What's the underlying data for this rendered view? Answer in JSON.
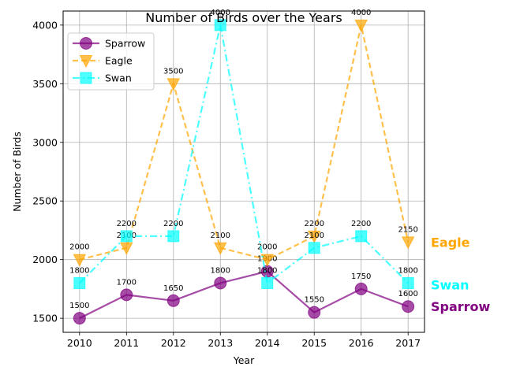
{
  "chart_data": {
    "type": "line",
    "title": "Number of Birds over the Years",
    "xlabel": "Year",
    "ylabel": "Number of Birds",
    "x": [
      2010,
      2011,
      2012,
      2013,
      2014,
      2015,
      2016,
      2017
    ],
    "xticks": [
      "2010",
      "2011",
      "2012",
      "2013",
      "2014",
      "2015",
      "2016",
      "2017"
    ],
    "yticks": [
      "1500",
      "2000",
      "2500",
      "3000",
      "3500",
      "4000"
    ],
    "ylim": [
      1380,
      4120
    ],
    "grid": true,
    "legend_position": "top-left",
    "series": [
      {
        "name": "Sparrow",
        "values": [
          1500,
          1700,
          1650,
          1800,
          1900,
          1550,
          1750,
          1600
        ],
        "labels": [
          "1500",
          "1700",
          "1650",
          "1800",
          "1900",
          "1550",
          "1750",
          "1600"
        ],
        "color": "#800080",
        "linestyle": "solid",
        "marker": "circle"
      },
      {
        "name": "Eagle",
        "values": [
          2000,
          2100,
          3500,
          2100,
          2000,
          2200,
          4000,
          2150
        ],
        "labels": [
          "2000",
          "2100",
          "3500",
          "2100",
          "2000",
          "2200",
          "4000",
          "2150"
        ],
        "color": "#FFA500",
        "linestyle": "dashed",
        "marker": "triangle-down"
      },
      {
        "name": "Swan",
        "values": [
          1800,
          2200,
          2200,
          4000,
          1800,
          2100,
          2200,
          1800
        ],
        "labels": [
          "1800",
          "2200",
          "2200",
          "4000",
          "1800",
          "2100",
          "2200",
          "1800"
        ],
        "color": "#00FFFF",
        "linestyle": "dashdot",
        "marker": "square"
      }
    ],
    "end_labels": [
      "Eagle",
      "Swan",
      "Sparrow"
    ]
  }
}
